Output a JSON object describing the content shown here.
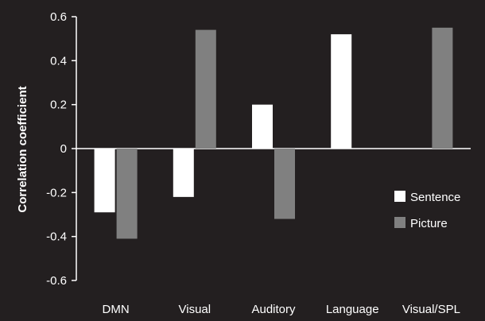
{
  "chart_data": {
    "type": "bar",
    "categories": [
      "DMN",
      "Visual",
      "Auditory",
      "Language",
      "Visual/SPL"
    ],
    "series": [
      {
        "name": "Sentence",
        "values": [
          -0.29,
          -0.22,
          0.2,
          0.52,
          null
        ],
        "color": "#ffffff"
      },
      {
        "name": "Picture",
        "values": [
          -0.41,
          0.54,
          -0.32,
          null,
          0.55
        ],
        "color": "#808080"
      }
    ],
    "ylabel": "Correlation coefficient",
    "xlabel": "",
    "ylim": [
      -0.6,
      0.6
    ],
    "yticks": [
      0.6,
      0.4,
      0.2,
      0,
      -0.2,
      -0.4,
      -0.6
    ],
    "ytick_labels": [
      "0.6",
      "0.4",
      "0.2",
      "0",
      "-0.2",
      "-0.4",
      "-0.6"
    ],
    "grid": false,
    "legend_position": "lower-right",
    "background_color": "#231f20",
    "axis_color": "#ffffff"
  }
}
